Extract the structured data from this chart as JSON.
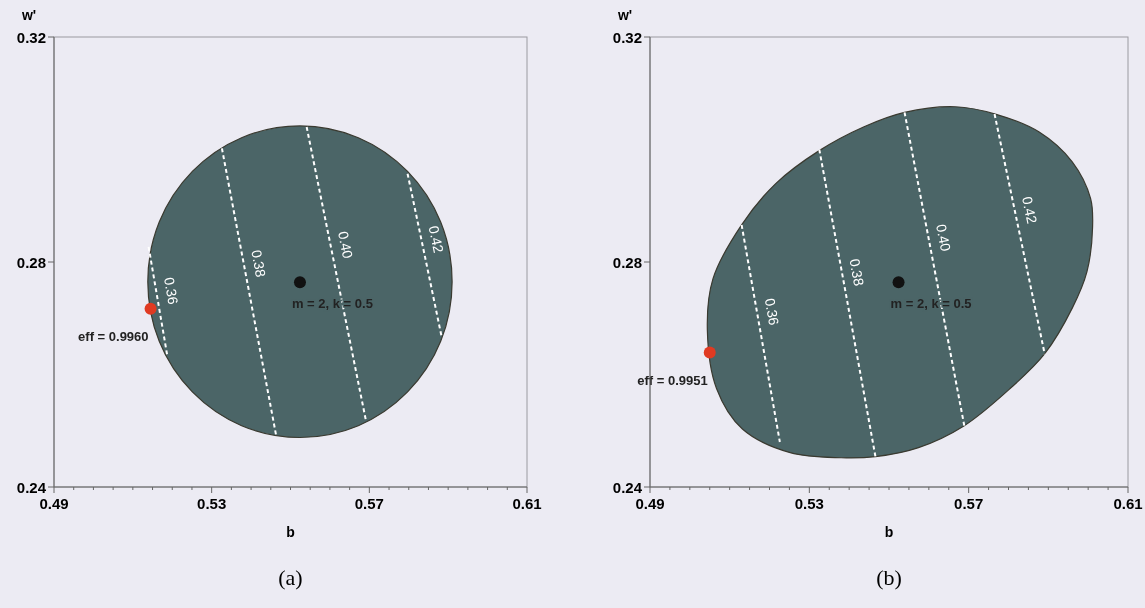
{
  "chart_data": [
    {
      "type": "scatter",
      "xlabel": "b",
      "ylabel": "w'",
      "xlim": [
        0.49,
        0.61
      ],
      "ylim": [
        0.24,
        0.32
      ],
      "xticks": [
        0.49,
        {
          "value": 0.495,
          "label": null
        },
        {
          "value": 0.5,
          "label": null
        },
        {
          "value": 0.505,
          "label": null
        },
        {
          "value": 0.51,
          "label": null
        },
        {
          "value": 0.515,
          "label": null
        },
        {
          "value": 0.52,
          "label": null
        },
        {
          "value": 0.525,
          "label": null
        },
        0.53,
        {
          "value": 0.535,
          "label": null
        },
        {
          "value": 0.54,
          "label": null
        },
        {
          "value": 0.545,
          "label": null
        },
        {
          "value": 0.55,
          "label": null
        },
        {
          "value": 0.555,
          "label": null
        },
        {
          "value": 0.56,
          "label": null
        },
        {
          "value": 0.565,
          "label": null
        },
        0.57,
        {
          "value": 0.575,
          "label": null
        },
        {
          "value": 0.58,
          "label": null
        },
        {
          "value": 0.585,
          "label": null
        },
        {
          "value": 0.59,
          "label": null
        },
        {
          "value": 0.595,
          "label": null
        },
        {
          "value": 0.6,
          "label": null
        },
        {
          "value": 0.605,
          "label": null
        },
        0.61
      ],
      "yticks": [
        0.24,
        0.28,
        0.32
      ],
      "grid": false,
      "legend": false,
      "series": [
        {
          "type": "area",
          "color": "#4b6567",
          "x": [
            0.591,
            0.5881,
            0.5797,
            0.5672,
            0.5524,
            0.5376,
            0.5251,
            0.5167,
            0.5138,
            0.5167,
            0.5251,
            0.5376,
            0.5524,
            0.5672,
            0.5797,
            0.5881
          ],
          "values": [
            0.2765,
            0.2871,
            0.2961,
            0.3021,
            0.3042,
            0.3021,
            0.2961,
            0.2871,
            0.2765,
            0.2659,
            0.2569,
            0.2509,
            0.2488,
            0.2509,
            0.2569,
            0.2659
          ]
        },
        {
          "type": "line",
          "name": "0.36",
          "color": "#ffffff",
          "line_style": "dashed",
          "x": [
            0.514,
            0.5188
          ],
          "values": [
            0.2827,
            0.2631
          ]
        },
        {
          "type": "line",
          "name": "0.38",
          "color": "#ffffff",
          "line_style": "dashed",
          "x": [
            0.5326,
            0.5393,
            0.5464
          ],
          "values": [
            0.3002,
            0.2754,
            0.249
          ]
        },
        {
          "type": "line",
          "name": "0.40",
          "color": "#ffffff",
          "line_style": "dashed",
          "x": [
            0.5541,
            0.5616,
            0.5692
          ],
          "values": [
            0.304,
            0.278,
            0.2516
          ]
        },
        {
          "type": "line",
          "name": "0.42",
          "color": "#ffffff",
          "line_style": "dashed",
          "x": [
            0.5797,
            0.5841,
            0.5884
          ],
          "values": [
            0.2957,
            0.281,
            0.2665
          ]
        },
        {
          "marker": "circle",
          "color": "#111111",
          "x": [
            0.5524
          ],
          "values": [
            0.2764
          ]
        },
        {
          "marker": "circle",
          "color": "#e03a22",
          "x": [
            0.5145
          ],
          "values": [
            0.2717
          ]
        }
      ],
      "annotations": [
        {
          "text": "m = 2,  k = 0.5",
          "x": 0.5524,
          "y": 0.2764
        },
        {
          "text": "eff = 0.9960",
          "x": 0.5145,
          "y": 0.2717
        },
        "(a)"
      ]
    },
    {
      "type": "scatter",
      "xlabel": "b",
      "ylabel": "w'",
      "xlim": [
        0.49,
        0.61
      ],
      "ylim": [
        0.24,
        0.32
      ],
      "xticks": [
        0.49,
        {
          "value": 0.495,
          "label": null
        },
        {
          "value": 0.5,
          "label": null
        },
        {
          "value": 0.505,
          "label": null
        },
        {
          "value": 0.51,
          "label": null
        },
        {
          "value": 0.515,
          "label": null
        },
        {
          "value": 0.52,
          "label": null
        },
        {
          "value": 0.525,
          "label": null
        },
        0.53,
        {
          "value": 0.535,
          "label": null
        },
        {
          "value": 0.54,
          "label": null
        },
        {
          "value": 0.545,
          "label": null
        },
        {
          "value": 0.55,
          "label": null
        },
        {
          "value": 0.555,
          "label": null
        },
        {
          "value": 0.56,
          "label": null
        },
        {
          "value": 0.565,
          "label": null
        },
        0.57,
        {
          "value": 0.575,
          "label": null
        },
        {
          "value": 0.58,
          "label": null
        },
        {
          "value": 0.585,
          "label": null
        },
        {
          "value": 0.59,
          "label": null
        },
        {
          "value": 0.595,
          "label": null
        },
        {
          "value": 0.6,
          "label": null
        },
        {
          "value": 0.605,
          "label": null
        },
        0.61
      ],
      "yticks": [
        0.24,
        0.28,
        0.32
      ],
      "grid": false,
      "legend": false,
      "series": [
        {
          "type": "area",
          "color": "#4b6567",
          "x": [
            0.5666,
            0.5767,
            0.5877,
            0.596,
            0.6006,
            0.6011,
            0.5997,
            0.596,
            0.5891,
            0.5804,
            0.5689,
            0.5574,
            0.5466,
            0.538,
            0.5252,
            0.5132,
            0.5067,
            0.5044,
            0.5058,
            0.513,
            0.5215,
            0.5325,
            0.5436,
            0.5539
          ],
          "values": [
            0.3076,
            0.3063,
            0.3031,
            0.2978,
            0.2913,
            0.2861,
            0.2783,
            0.2718,
            0.2637,
            0.2575,
            0.2509,
            0.247,
            0.2454,
            0.2452,
            0.2461,
            0.2503,
            0.2575,
            0.2679,
            0.277,
            0.2866,
            0.2939,
            0.2998,
            0.304,
            0.3066
          ]
        },
        {
          "type": "line",
          "name": "0.36",
          "color": "#ffffff",
          "line_style": "dashed",
          "x": [
            0.513,
            0.5226
          ],
          "values": [
            0.2866,
            0.248
          ]
        },
        {
          "type": "line",
          "name": "0.38",
          "color": "#ffffff",
          "line_style": "dashed",
          "x": [
            0.5325,
            0.5396,
            0.5466
          ],
          "values": [
            0.3,
            0.2727,
            0.2454
          ]
        },
        {
          "type": "line",
          "name": "0.40",
          "color": "#ffffff",
          "line_style": "dashed",
          "x": [
            0.5539,
            0.5614,
            0.5689
          ],
          "values": [
            0.3066,
            0.2788,
            0.2509
          ]
        },
        {
          "type": "line",
          "name": "0.42",
          "color": "#ffffff",
          "line_style": "dashed",
          "x": [
            0.5765,
            0.5828,
            0.5891
          ],
          "values": [
            0.3063,
            0.285,
            0.2636
          ]
        },
        {
          "marker": "circle",
          "color": "#111111",
          "x": [
            0.5524
          ],
          "values": [
            0.2764
          ]
        },
        {
          "marker": "circle",
          "color": "#e03a22",
          "x": [
            0.505
          ],
          "values": [
            0.2639
          ]
        }
      ],
      "annotations": [
        {
          "text": "m = 2,  k = 0.5",
          "x": 0.5524,
          "y": 0.2764
        },
        {
          "text": "eff = 0.9951",
          "x": 0.505,
          "y": 0.2639
        },
        "(b)"
      ]
    }
  ]
}
